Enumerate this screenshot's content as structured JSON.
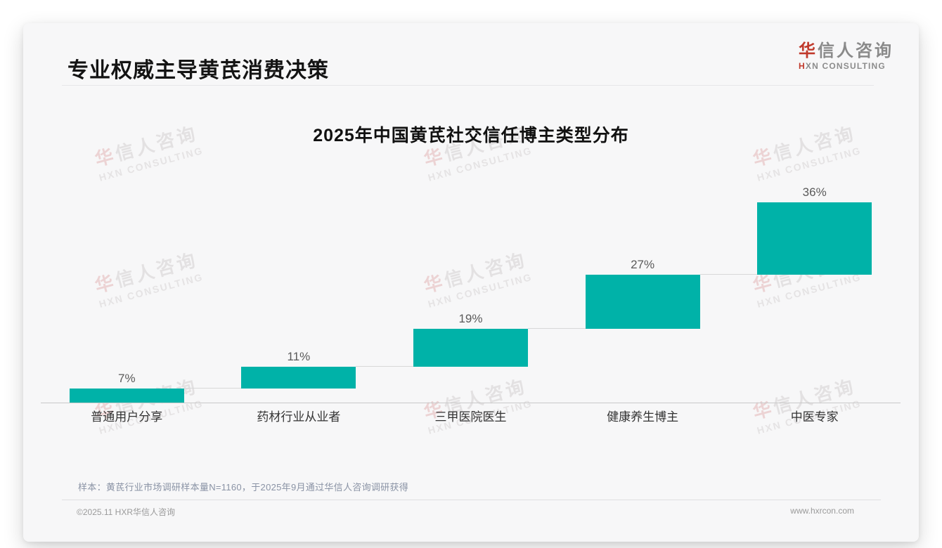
{
  "header": {
    "title": "专业权威主导黄芪消费决策",
    "logo": {
      "cn_accent": "华",
      "cn_rest": "信人咨询",
      "en_accent": "H",
      "en_rest": "XN CONSULTING"
    }
  },
  "watermark": {
    "cn_accent": "华",
    "cn_rest": "信人咨询",
    "en": "HXN CONSULTING"
  },
  "chart_data": {
    "type": "bar",
    "subtype": "waterfall-step",
    "title": "2025年中国黄芪社交信任博主类型分布",
    "categories": [
      "普通用户分享",
      "药材行业从业者",
      "三甲医院医生",
      "健康养生博主",
      "中医专家"
    ],
    "values": [
      7,
      11,
      19,
      27,
      36
    ],
    "value_labels": [
      "7%",
      "11%",
      "19%",
      "27%",
      "36%"
    ],
    "cumulative_end": [
      7,
      18,
      37,
      64,
      100
    ],
    "ylim": [
      0,
      100
    ],
    "bar_color": "#00b2a8",
    "grid": false,
    "legend": false,
    "xlabel": "",
    "ylabel": ""
  },
  "footer": {
    "sample_note": "样本：黄芪行业市场调研样本量N=1160，于2025年9月通过华信人咨询调研获得",
    "copyright": "©2025.11 HXR华信人咨询",
    "website": "www.hxrcon.com"
  },
  "colors": {
    "bar_teal": "#00b2a8",
    "accent_red": "#c0392b",
    "card_bg": "#f7f7f8"
  }
}
